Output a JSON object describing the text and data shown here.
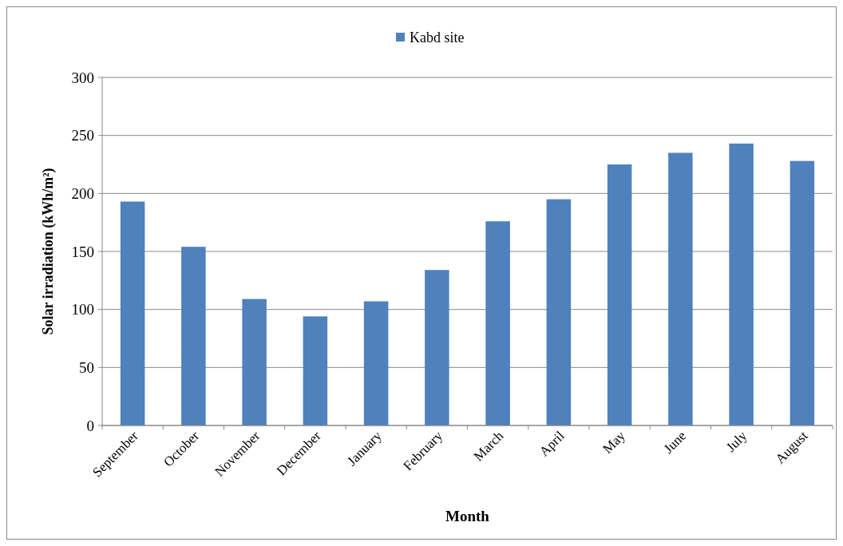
{
  "chart_data": {
    "type": "bar",
    "xlabel": "Month",
    "ylabel": "Solar irradiation (kWh/m²)",
    "categories": [
      "September",
      "October",
      "November",
      "December",
      "January",
      "February",
      "March",
      "April",
      "May",
      "June",
      "July",
      "August"
    ],
    "series": [
      {
        "name": "Kabd site",
        "color": "#4f81bd",
        "values": [
          193,
          154,
          109,
          94,
          107,
          134,
          176,
          195,
          225,
          235,
          243,
          228
        ]
      }
    ],
    "ylim": [
      0,
      300
    ],
    "yticks": [
      0,
      50,
      100,
      150,
      200,
      250,
      300
    ],
    "grid": "y",
    "legend": "top"
  }
}
